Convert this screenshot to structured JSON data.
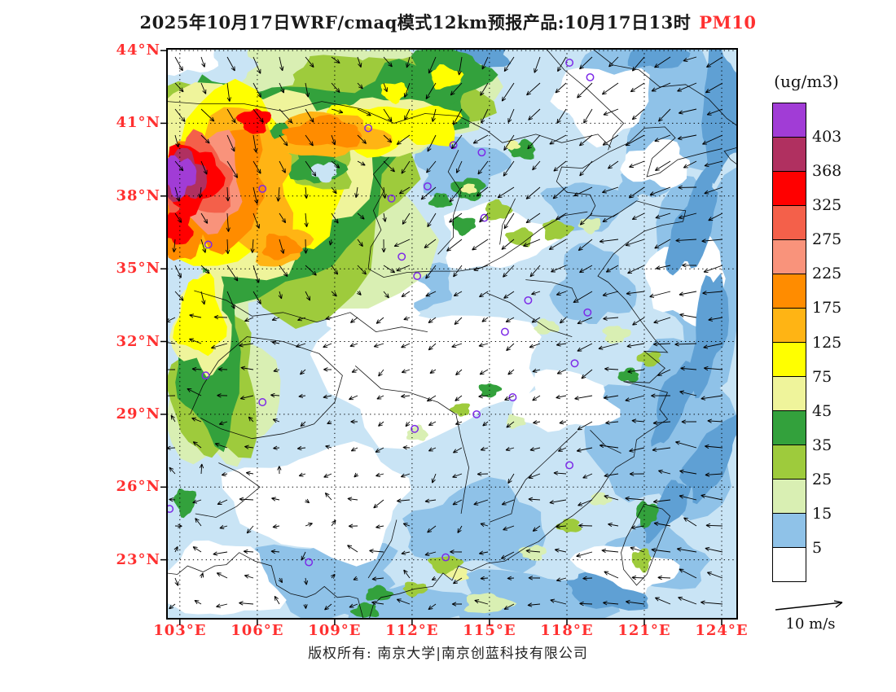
{
  "title": {
    "text": "2025年10月17日WRF/cmaq模式12km预报产品:10月17日13时",
    "species": "PM10"
  },
  "footer": {
    "text": "版权所有: 南京大学|南京创蓝科技有限公司"
  },
  "colorbar": {
    "title": "(ug/m3)",
    "boundary_labels": [
      "403",
      "368",
      "325",
      "275",
      "225",
      "175",
      "125",
      "75",
      "45",
      "35",
      "25",
      "15",
      "5"
    ],
    "cells_top_to_bottom": [
      "pu",
      "mr",
      "r",
      "lr",
      "sa",
      "o",
      "am",
      "y",
      "py",
      "g",
      "yg",
      "pg",
      "b2",
      "w"
    ]
  },
  "wind_legend": {
    "label": "10 m/s",
    "speed_mps": 10
  },
  "axes": {
    "lat_labels": [
      "44°N",
      "41°N",
      "38°N",
      "35°N",
      "32°N",
      "29°N",
      "26°N",
      "23°N"
    ],
    "lat_values": [
      44,
      41,
      38,
      35,
      32,
      29,
      26,
      23
    ],
    "lon_labels": [
      "103°E",
      "106°E",
      "109°E",
      "112°E",
      "115°E",
      "118°E",
      "121°E",
      "124°E"
    ],
    "lon_values": [
      103,
      106,
      109,
      112,
      115,
      118,
      121,
      124
    ],
    "label_color": "#ff3030"
  },
  "chart_data": {
    "type": "heatmap",
    "title": "2025年10月17日WRF/cmaq模式12km预报产品:10月17日13时 PM10",
    "units": "ug/m3",
    "levels": [
      5,
      15,
      25,
      35,
      45,
      75,
      125,
      175,
      225,
      275,
      325,
      368,
      403
    ],
    "lon_range": [
      102.5,
      124.6
    ],
    "lat_range": [
      20.57,
      44.07
    ],
    "palette": {
      "w": "#FFFFFF",
      "b1": "#C9E4F5",
      "b2": "#8FC2E8",
      "b3": "#5FA0D4",
      "pg": "#D9EFB3",
      "yg": "#9ECB3C",
      "g": "#33A13C",
      "py": "#EFF49B",
      "y": "#FFFF00",
      "am": "#FFB414",
      "o": "#FF8C00",
      "sa": "#F9937B",
      "lr": "#F4604A",
      "r": "#FF0000",
      "mr": "#B03060",
      "pu": "#A13CD6"
    },
    "station_color": "#7D2AE8",
    "regions": [
      [
        122.5,
        41.5,
        2.6,
        2.8,
        "b2",
        1
      ],
      [
        123.5,
        35.0,
        2.0,
        4.2,
        "b2",
        2
      ],
      [
        121.8,
        28.3,
        2.8,
        3.4,
        "b2",
        3
      ],
      [
        119.0,
        34.3,
        1.5,
        1.6,
        "b2",
        4
      ],
      [
        113.8,
        39.2,
        1.7,
        1.2,
        "b2",
        5
      ],
      [
        108.3,
        22.3,
        3.2,
        1.5,
        "b2",
        6
      ],
      [
        114.6,
        24.3,
        2.7,
        1.7,
        "b2",
        7
      ],
      [
        104.8,
        30.6,
        1.5,
        1.1,
        "b2",
        8
      ],
      [
        118.8,
        37.6,
        1.6,
        1.0,
        "b2",
        9
      ],
      [
        112.0,
        34.3,
        1.7,
        0.9,
        "b2",
        10
      ],
      [
        121.2,
        23.0,
        2.2,
        1.3,
        "b2",
        11
      ],
      [
        116.5,
        21.2,
        3.0,
        1.3,
        "b2",
        12
      ],
      [
        111.5,
        20.9,
        2.6,
        1.1,
        "b2",
        13
      ],
      [
        120.3,
        43.6,
        1.5,
        1.0,
        "b2",
        14
      ],
      [
        121.0,
        38.6,
        1.0,
        0.7,
        "b2",
        15
      ],
      [
        112.4,
        30.9,
        4.3,
        2.7,
        "w",
        20
      ],
      [
        108.5,
        25.4,
        3.4,
        2.2,
        "w",
        21
      ],
      [
        104.4,
        22.1,
        2.4,
        1.5,
        "w",
        22
      ],
      [
        115.2,
        36.3,
        2.1,
        1.3,
        "w",
        23
      ],
      [
        119.4,
        41.9,
        1.8,
        1.5,
        "w",
        24
      ],
      [
        122.7,
        34.6,
        1.5,
        1.9,
        "w",
        25
      ],
      [
        117.9,
        29.5,
        1.9,
        1.2,
        "w",
        26
      ],
      [
        120.1,
        22.5,
        1.9,
        1.1,
        "w",
        27
      ],
      [
        110.0,
        33.6,
        2.6,
        1.1,
        "w",
        28
      ],
      [
        121.5,
        39.3,
        1.3,
        0.9,
        "w",
        29
      ],
      [
        122.9,
        36.8,
        0.7,
        2.2,
        "b3",
        30,
        20
      ],
      [
        123.5,
        32.4,
        0.6,
        2.5,
        "b3",
        31,
        10
      ],
      [
        122.2,
        29.6,
        0.55,
        1.9,
        "b3",
        32,
        25
      ],
      [
        123.6,
        27.2,
        0.7,
        1.9,
        "b3",
        33,
        30
      ],
      [
        124.0,
        41.5,
        0.8,
        2.6,
        "b3",
        34,
        0
      ],
      [
        121.9,
        25.1,
        0.5,
        1.4,
        "b3",
        35,
        35
      ],
      [
        114.3,
        43.95,
        1.6,
        0.7,
        "b3",
        36,
        0
      ],
      [
        121.5,
        43.9,
        1.1,
        0.7,
        "b3",
        37,
        0
      ],
      [
        119.5,
        21.6,
        1.6,
        0.6,
        "b3",
        38,
        15
      ],
      [
        107.0,
        38.7,
        5.9,
        5.5,
        "pg",
        40
      ],
      [
        104.6,
        30.4,
        2.0,
        3.7,
        "pg",
        41
      ],
      [
        112.0,
        42.0,
        3.1,
        2.1,
        "pg",
        42
      ],
      [
        106.8,
        38.7,
        5.3,
        5.0,
        "yg",
        43
      ],
      [
        104.4,
        30.3,
        1.6,
        3.3,
        "yg",
        44
      ],
      [
        111.9,
        41.9,
        2.7,
        1.8,
        "yg",
        45
      ],
      [
        106.6,
        38.9,
        4.7,
        4.5,
        "g",
        46
      ],
      [
        104.2,
        31.0,
        1.25,
        2.9,
        "g",
        47
      ],
      [
        111.8,
        41.9,
        2.3,
        1.4,
        "g",
        48
      ],
      [
        113.4,
        43.0,
        1.5,
        1.1,
        "g",
        49
      ],
      [
        106.0,
        43.3,
        1.9,
        0.9,
        "pg",
        50
      ],
      [
        104.4,
        43.6,
        1.6,
        0.9,
        "b1",
        51
      ],
      [
        103.2,
        43.7,
        1.2,
        0.7,
        "w",
        52
      ],
      [
        105.9,
        38.8,
        4.0,
        3.9,
        "py",
        53
      ],
      [
        110.7,
        40.9,
        2.3,
        1.2,
        "py",
        54
      ],
      [
        103.9,
        32.7,
        1.1,
        2.0,
        "py",
        55
      ],
      [
        105.6,
        38.6,
        3.5,
        3.4,
        "y",
        56
      ],
      [
        110.5,
        40.8,
        1.9,
        1.0,
        "y",
        57
      ],
      [
        112.6,
        40.9,
        1.3,
        0.8,
        "y",
        58
      ],
      [
        103.8,
        33.0,
        0.9,
        1.6,
        "y",
        59
      ],
      [
        113.3,
        42.9,
        0.6,
        0.45,
        "y",
        60
      ],
      [
        111.3,
        42.3,
        0.5,
        0.4,
        "y",
        61
      ],
      [
        108.4,
        39.3,
        1.35,
        1.05,
        "yg",
        62
      ],
      [
        108.3,
        39.3,
        1.0,
        0.8,
        "g",
        63
      ],
      [
        107.2,
        40.4,
        0.8,
        0.6,
        "g",
        64
      ],
      [
        108.6,
        39.0,
        0.5,
        0.38,
        "b1",
        65
      ],
      [
        105.0,
        38.5,
        2.5,
        2.8,
        "am",
        66
      ],
      [
        108.8,
        40.5,
        2.1,
        0.9,
        "am",
        67
      ],
      [
        106.8,
        36.0,
        1.15,
        0.85,
        "am",
        68
      ],
      [
        104.4,
        38.4,
        2.0,
        2.3,
        "o",
        69
      ],
      [
        108.6,
        40.6,
        1.5,
        0.6,
        "o",
        70
      ],
      [
        106.9,
        35.9,
        0.7,
        0.5,
        "o",
        71
      ],
      [
        103.1,
        36.6,
        0.95,
        1.15,
        "o",
        72
      ],
      [
        103.9,
        38.6,
        1.55,
        1.9,
        "sa",
        73
      ],
      [
        103.7,
        38.7,
        1.3,
        1.6,
        "lr",
        74
      ],
      [
        103.5,
        38.75,
        1.05,
        1.35,
        "r",
        75
      ],
      [
        105.9,
        41.1,
        0.6,
        0.5,
        "r",
        76
      ],
      [
        102.9,
        36.7,
        0.6,
        0.7,
        "r",
        77
      ],
      [
        103.2,
        38.8,
        0.8,
        1.02,
        "mr",
        78
      ],
      [
        103.0,
        38.85,
        0.6,
        0.8,
        "pu",
        79
      ],
      [
        114.2,
        38.3,
        0.62,
        0.45,
        "g",
        80
      ],
      [
        114.2,
        38.3,
        0.3,
        0.2,
        "py",
        81
      ],
      [
        115.3,
        37.4,
        0.5,
        0.4,
        "yg",
        82
      ],
      [
        114.0,
        36.8,
        0.45,
        0.35,
        "g",
        83
      ],
      [
        116.2,
        36.3,
        0.5,
        0.36,
        "yg",
        84
      ],
      [
        113.1,
        37.8,
        0.4,
        0.3,
        "g",
        85
      ],
      [
        117.6,
        36.6,
        0.55,
        0.4,
        "yg",
        86
      ],
      [
        118.9,
        36.8,
        0.42,
        0.3,
        "pg",
        87
      ],
      [
        116.3,
        39.9,
        0.5,
        0.38,
        "g",
        88
      ],
      [
        115.9,
        40.1,
        0.26,
        0.2,
        "py",
        89
      ],
      [
        119.9,
        32.3,
        0.5,
        0.36,
        "pg",
        90
      ],
      [
        121.2,
        31.3,
        0.45,
        0.3,
        "yg",
        91
      ],
      [
        120.4,
        30.6,
        0.4,
        0.28,
        "g",
        92
      ],
      [
        117.2,
        32.6,
        0.46,
        0.3,
        "pg",
        93
      ],
      [
        115.0,
        30.0,
        0.4,
        0.28,
        "g",
        94
      ],
      [
        113.9,
        29.2,
        0.36,
        0.26,
        "yg",
        95
      ],
      [
        112.2,
        28.2,
        0.4,
        0.3,
        "pg",
        96
      ],
      [
        116.0,
        28.7,
        0.36,
        0.26,
        "pg",
        97
      ],
      [
        113.3,
        22.8,
        0.6,
        0.38,
        "yg",
        98
      ],
      [
        113.8,
        22.4,
        0.4,
        0.26,
        "py",
        99
      ],
      [
        110.7,
        21.6,
        0.5,
        0.3,
        "g",
        100
      ],
      [
        112.1,
        21.8,
        0.46,
        0.28,
        "yg",
        101
      ],
      [
        116.7,
        23.3,
        0.5,
        0.3,
        "pg",
        102
      ],
      [
        118.1,
        24.4,
        0.45,
        0.28,
        "yg",
        103
      ],
      [
        119.3,
        25.5,
        0.4,
        0.26,
        "pg",
        104
      ],
      [
        121.1,
        24.9,
        0.42,
        0.5,
        "g",
        105
      ],
      [
        120.9,
        23.0,
        0.36,
        0.45,
        "yg",
        106
      ],
      [
        110.2,
        20.9,
        0.5,
        0.3,
        "g",
        107
      ],
      [
        114.9,
        21.2,
        0.9,
        0.4,
        "pg",
        108
      ],
      [
        103.2,
        25.4,
        0.4,
        0.55,
        "g",
        109
      ]
    ],
    "stations": [
      [
        118.1,
        43.5
      ],
      [
        118.9,
        42.9
      ],
      [
        110.3,
        40.8
      ],
      [
        113.6,
        40.1
      ],
      [
        114.7,
        39.8
      ],
      [
        112.6,
        38.4
      ],
      [
        106.2,
        38.3
      ],
      [
        111.2,
        37.9
      ],
      [
        114.8,
        37.1
      ],
      [
        104.1,
        36.0
      ],
      [
        111.6,
        35.5
      ],
      [
        112.2,
        34.7
      ],
      [
        116.5,
        33.7
      ],
      [
        118.8,
        33.2
      ],
      [
        115.6,
        32.4
      ],
      [
        118.3,
        31.1
      ],
      [
        104.0,
        30.6
      ],
      [
        106.2,
        29.5
      ],
      [
        114.5,
        29.0
      ],
      [
        112.1,
        28.4
      ],
      [
        118.1,
        26.9
      ],
      [
        102.6,
        25.1
      ],
      [
        108.0,
        22.9
      ],
      [
        113.3,
        23.1
      ],
      [
        115.9,
        29.7
      ]
    ]
  }
}
